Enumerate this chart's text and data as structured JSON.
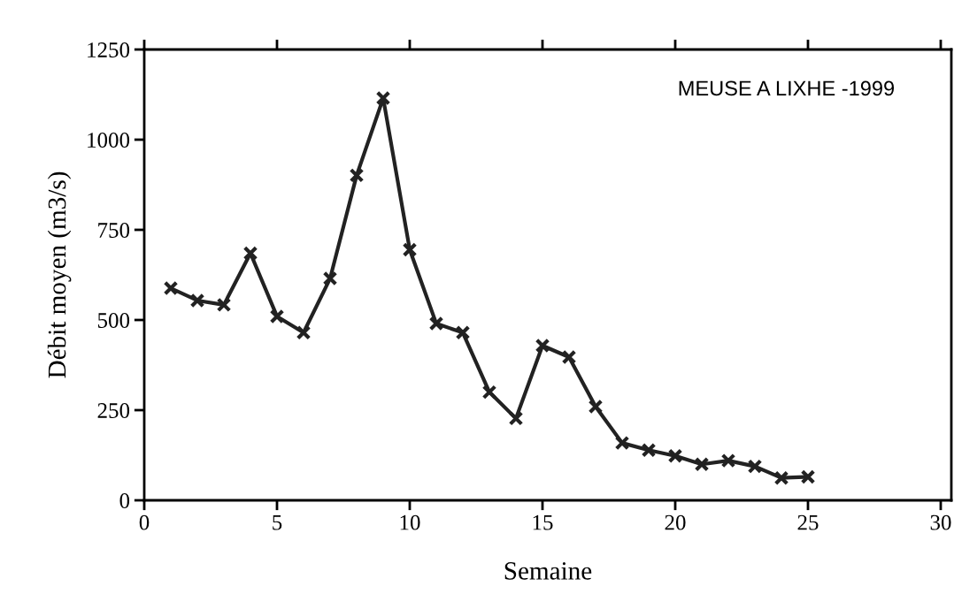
{
  "chart_data": {
    "type": "line",
    "xlabel": "Semaine",
    "ylabel": "Débit moyen (m3/s)",
    "annotations": [
      "MEUSE A LIXHE -1999"
    ],
    "x": [
      1,
      2,
      3,
      4,
      5,
      6,
      7,
      8,
      9,
      10,
      11,
      12,
      13,
      14,
      15,
      16,
      17,
      18,
      19,
      20,
      21,
      22,
      23,
      24,
      25
    ],
    "series": [
      {
        "color": "#222222",
        "values": [
          588,
          554,
          542,
          685,
          510,
          465,
          615,
          901,
          1115,
          695,
          490,
          465,
          300,
          227,
          429,
          397,
          260,
          159,
          139,
          123,
          100,
          110,
          94,
          62,
          65
        ]
      }
    ],
    "xlim": [
      0,
      30.4
    ],
    "ylim": [
      0,
      1250
    ],
    "xticks": [
      0,
      5,
      10,
      15,
      20,
      25,
      30
    ],
    "yticks": [
      0,
      250,
      500,
      750,
      1000,
      1250
    ],
    "marker": "cross",
    "line_style": "solid",
    "grid": false,
    "legend": false
  }
}
